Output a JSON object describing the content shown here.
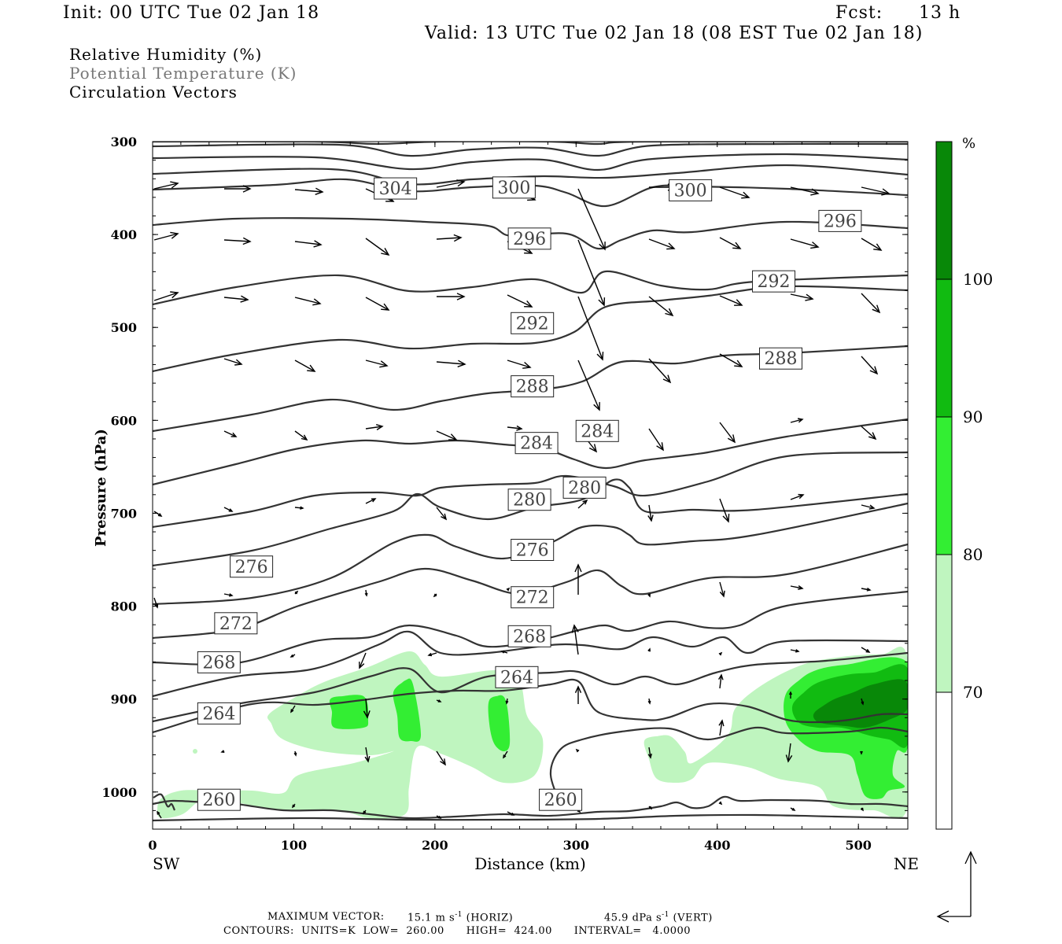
{
  "header": {
    "init": "Init: 00 UTC Tue 02 Jan 18",
    "fcst_label": "Fcst:",
    "fcst_value": "13 h",
    "valid": "Valid: 13 UTC Tue 02 Jan 18 (08 EST Tue 02 Jan 18)"
  },
  "legend": {
    "rh": "Relative Humidity (%)",
    "theta": "Potential Temperature (K)",
    "vectors": "Circulation Vectors"
  },
  "footer": {
    "max_vector_label": "MAXIMUM VECTOR:",
    "horiz_value": "15.1 m s",
    "horiz_unit": "(HORIZ)",
    "vert_value": "45.9 dPa s",
    "vert_unit": "(VERT)",
    "exponent": "-1",
    "contours": "CONTOURS:  UNITS=K  LOW=  260.00      HIGH=  424.00      INTERVAL=   4.0000"
  },
  "colors": {
    "rh_70": "#bff5bf",
    "rh_80": "#33ee33",
    "rh_90": "#11bb11",
    "rh_100": "#088808",
    "contour": "#333333"
  },
  "chart_data": {
    "type": "contour",
    "xlabel": "Distance (km)",
    "ylabel": "Pressure (hPa)",
    "x_left_label": "SW",
    "x_right_label": "NE",
    "xlim": [
      0,
      535
    ],
    "ylim": [
      1040,
      300
    ],
    "x_ticks": [
      "0",
      "100",
      "200",
      "300",
      "400",
      "500"
    ],
    "y_ticks": [
      "300",
      "400",
      "500",
      "600",
      "700",
      "800",
      "900",
      "1000"
    ],
    "colorbar": {
      "unit": "%",
      "levels": [
        "70",
        "80",
        "90",
        "100"
      ]
    },
    "theta_contour_labels": [
      {
        "value": "304",
        "x": 172,
        "p": 350
      },
      {
        "value": "300",
        "x": 256,
        "p": 349
      },
      {
        "value": "300",
        "x": 381,
        "p": 352
      },
      {
        "value": "296",
        "x": 267,
        "p": 404
      },
      {
        "value": "296",
        "x": 487,
        "p": 385
      },
      {
        "value": "292",
        "x": 269,
        "p": 495
      },
      {
        "value": "292",
        "x": 440,
        "p": 450
      },
      {
        "value": "288",
        "x": 269,
        "p": 563
      },
      {
        "value": "288",
        "x": 445,
        "p": 533
      },
      {
        "value": "284",
        "x": 272,
        "p": 624
      },
      {
        "value": "284",
        "x": 315,
        "p": 611
      },
      {
        "value": "280",
        "x": 267,
        "p": 685
      },
      {
        "value": "280",
        "x": 306,
        "p": 672
      },
      {
        "value": "276",
        "x": 70,
        "p": 757
      },
      {
        "value": "276",
        "x": 269,
        "p": 739
      },
      {
        "value": "272",
        "x": 59,
        "p": 818
      },
      {
        "value": "272",
        "x": 269,
        "p": 790
      },
      {
        "value": "268",
        "x": 47,
        "p": 860
      },
      {
        "value": "268",
        "x": 267,
        "p": 832
      },
      {
        "value": "264",
        "x": 47,
        "p": 915
      },
      {
        "value": "264",
        "x": 258,
        "p": 876
      },
      {
        "value": "260",
        "x": 47,
        "p": 1008
      },
      {
        "value": "260",
        "x": 289,
        "p": 1008
      }
    ]
  }
}
